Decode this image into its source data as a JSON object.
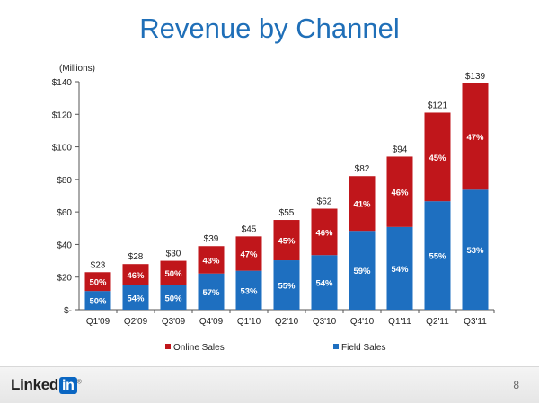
{
  "chart_data": {
    "type": "bar",
    "stacked": true,
    "title": "Revenue by Channel",
    "y_unit_label": "(Millions)",
    "categories": [
      "Q1'09",
      "Q2'09",
      "Q3'09",
      "Q4'09",
      "Q1'10",
      "Q2'10",
      "Q3'10",
      "Q4'10",
      "Q1'11",
      "Q2'11",
      "Q3'11"
    ],
    "totals": [
      23,
      28,
      30,
      39,
      45,
      55,
      62,
      82,
      94,
      121,
      139
    ],
    "total_labels": [
      "$23",
      "$28",
      "$30",
      "$39",
      "$45",
      "$55",
      "$62",
      "$82",
      "$94",
      "$121",
      "$139"
    ],
    "series": [
      {
        "name": "Field Sales",
        "color": "#1e6fc0",
        "percent_labels": [
          "50%",
          "54%",
          "50%",
          "57%",
          "53%",
          "55%",
          "54%",
          "59%",
          "54%",
          "55%",
          "53%"
        ],
        "values": [
          11.5,
          15.1,
          15.0,
          22.2,
          23.9,
          30.3,
          33.5,
          48.4,
          50.8,
          66.6,
          73.7
        ]
      },
      {
        "name": "Online Sales",
        "color": "#c0161b",
        "percent_labels": [
          "50%",
          "46%",
          "50%",
          "43%",
          "47%",
          "45%",
          "46%",
          "41%",
          "46%",
          "45%",
          "47%"
        ],
        "values": [
          11.5,
          12.9,
          15.0,
          16.8,
          21.1,
          24.8,
          28.5,
          33.6,
          43.2,
          54.4,
          65.3
        ]
      }
    ],
    "ylim": [
      0,
      140
    ],
    "yticks": [
      0,
      20,
      40,
      60,
      80,
      100,
      120,
      140
    ],
    "ytick_labels": [
      "$-",
      "$20",
      "$40",
      "$60",
      "$80",
      "$100",
      "$120",
      "$140"
    ],
    "legend_placement": "bottom",
    "grid": false
  },
  "footer": {
    "logo_text": "Linked",
    "logo_in": "in",
    "logo_reg": "®",
    "page_number": "8"
  }
}
